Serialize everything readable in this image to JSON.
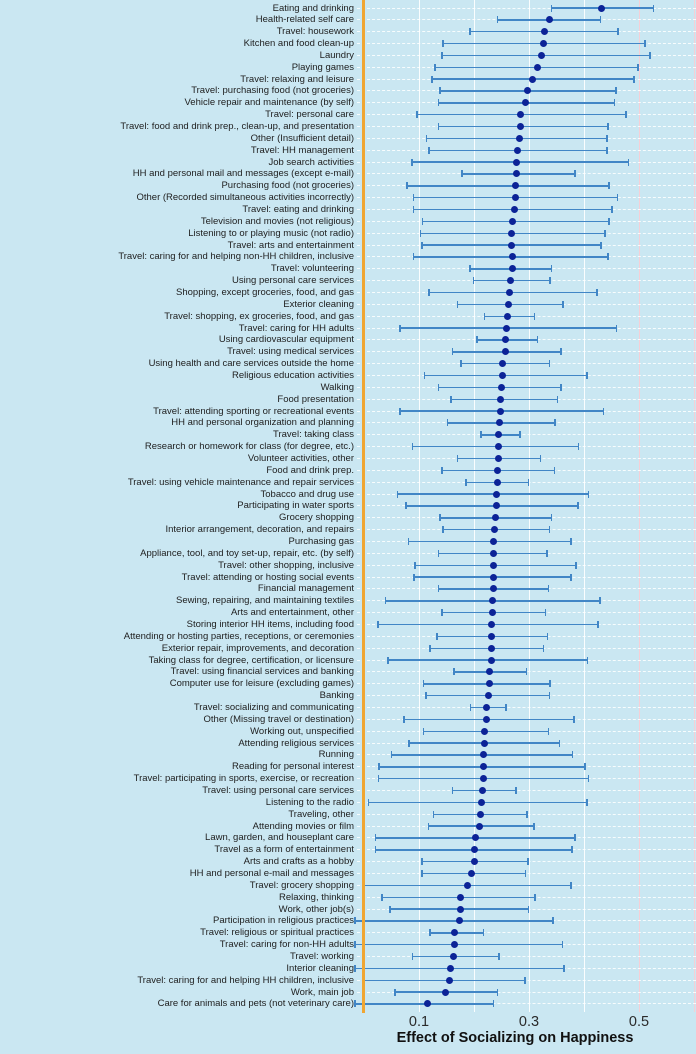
{
  "colors": {
    "background": "#cae7f2",
    "bar": "#4186c6",
    "dot": "#0c2397",
    "reference_line": "#f0a632",
    "gridline_white": "rgba(255,255,255,0.9)",
    "gridline_pink": "#f6cfd6"
  },
  "chart_data": {
    "type": "scatter",
    "variant": "forest-plot-dot-with-error-bars",
    "title": "",
    "xlabel": "Effect of Socializing on Happiness",
    "ylabel": "",
    "x_ticks": [
      0.1,
      0.3,
      0.5
    ],
    "x_tick_labels": [
      "0.1",
      "0.3",
      "0.5"
    ],
    "xlim": [
      -0.03,
      0.61
    ],
    "reference_line_x": 0,
    "grid_values": [
      0.1,
      0.2,
      0.3,
      0.4,
      0.5,
      0.6
    ],
    "legend_position": "none",
    "rows": [
      {
        "label": "Eating and drinking",
        "value": 0.432,
        "lo": 0.341,
        "hi": 0.526
      },
      {
        "label": "Health-related self care",
        "value": 0.337,
        "lo": 0.243,
        "hi": 0.43
      },
      {
        "label": "Travel: housework",
        "value": 0.328,
        "lo": 0.193,
        "hi": 0.462
      },
      {
        "label": "Kitchen and food clean-up",
        "value": 0.326,
        "lo": 0.144,
        "hi": 0.511
      },
      {
        "label": "Laundry",
        "value": 0.322,
        "lo": 0.142,
        "hi": 0.52
      },
      {
        "label": "Playing games",
        "value": 0.316,
        "lo": 0.129,
        "hi": 0.498
      },
      {
        "label": "Travel: relaxing and leisure",
        "value": 0.307,
        "lo": 0.124,
        "hi": 0.491
      },
      {
        "label": "Travel: purchasing food (not groceries)",
        "value": 0.298,
        "lo": 0.138,
        "hi": 0.458
      },
      {
        "label": "Vehicle repair and maintenance (by self)",
        "value": 0.293,
        "lo": 0.135,
        "hi": 0.455
      },
      {
        "label": "Travel: personal care",
        "value": 0.285,
        "lo": 0.096,
        "hi": 0.476
      },
      {
        "label": "Travel: food and drink prep., clean-up, and presentation",
        "value": 0.285,
        "lo": 0.135,
        "hi": 0.444
      },
      {
        "label": "Other (Insufficient detail)",
        "value": 0.282,
        "lo": 0.114,
        "hi": 0.442
      },
      {
        "label": "Travel: HH management",
        "value": 0.279,
        "lo": 0.118,
        "hi": 0.442
      },
      {
        "label": "Job search activities",
        "value": 0.278,
        "lo": 0.087,
        "hi": 0.481
      },
      {
        "label": "HH and personal mail and messages (except e-mail)",
        "value": 0.278,
        "lo": 0.178,
        "hi": 0.384
      },
      {
        "label": "Purchasing food (not groceries)",
        "value": 0.276,
        "lo": 0.078,
        "hi": 0.445
      },
      {
        "label": "Other (Recorded simultaneous activities incorrectly)",
        "value": 0.276,
        "lo": 0.09,
        "hi": 0.461
      },
      {
        "label": "Travel: eating and drinking",
        "value": 0.273,
        "lo": 0.09,
        "hi": 0.451
      },
      {
        "label": "Television and movies (not religious)",
        "value": 0.27,
        "lo": 0.106,
        "hi": 0.445
      },
      {
        "label": "Listening to or playing music (not radio)",
        "value": 0.268,
        "lo": 0.103,
        "hi": 0.438
      },
      {
        "label": "Travel: arts and entertainment",
        "value": 0.268,
        "lo": 0.105,
        "hi": 0.431
      },
      {
        "label": "Travel: caring for and helping non-HH children, inclusive",
        "value": 0.27,
        "lo": 0.09,
        "hi": 0.444
      },
      {
        "label": "Travel: volunteering",
        "value": 0.27,
        "lo": 0.193,
        "hi": 0.341
      },
      {
        "label": "Using personal care services",
        "value": 0.267,
        "lo": 0.199,
        "hi": 0.338
      },
      {
        "label": "Shopping, except groceries, food, and gas",
        "value": 0.265,
        "lo": 0.118,
        "hi": 0.424
      },
      {
        "label": "Exterior cleaning",
        "value": 0.262,
        "lo": 0.17,
        "hi": 0.362
      },
      {
        "label": "Travel: shopping, ex groceries, food, and gas",
        "value": 0.261,
        "lo": 0.219,
        "hi": 0.31
      },
      {
        "label": "Travel: caring for HH adults",
        "value": 0.259,
        "lo": 0.065,
        "hi": 0.459
      },
      {
        "label": "Using cardiovascular equipment",
        "value": 0.258,
        "lo": 0.205,
        "hi": 0.315
      },
      {
        "label": "Travel: using medical services",
        "value": 0.258,
        "lo": 0.161,
        "hi": 0.358
      },
      {
        "label": "Using health and care services outside the home",
        "value": 0.252,
        "lo": 0.176,
        "hi": 0.337
      },
      {
        "label": "Religious education activities",
        "value": 0.252,
        "lo": 0.11,
        "hi": 0.405
      },
      {
        "label": "Walking",
        "value": 0.25,
        "lo": 0.135,
        "hi": 0.358
      },
      {
        "label": "Food presentation",
        "value": 0.249,
        "lo": 0.158,
        "hi": 0.352
      },
      {
        "label": "Travel: attending sporting or recreational events",
        "value": 0.249,
        "lo": 0.065,
        "hi": 0.435
      },
      {
        "label": "HH and personal organization and planning",
        "value": 0.246,
        "lo": 0.152,
        "hi": 0.347
      },
      {
        "label": "Travel: taking class",
        "value": 0.244,
        "lo": 0.213,
        "hi": 0.284
      },
      {
        "label": "Research or homework for class (for degree, etc.)",
        "value": 0.244,
        "lo": 0.088,
        "hi": 0.39
      },
      {
        "label": "Volunteer activities, other",
        "value": 0.244,
        "lo": 0.17,
        "hi": 0.321
      },
      {
        "label": "Food and drink prep.",
        "value": 0.243,
        "lo": 0.142,
        "hi": 0.346
      },
      {
        "label": "Travel: using vehicle maintenance and repair services",
        "value": 0.243,
        "lo": 0.185,
        "hi": 0.299
      },
      {
        "label": "Tobacco and drug use",
        "value": 0.241,
        "lo": 0.061,
        "hi": 0.408
      },
      {
        "label": "Participating in water sports",
        "value": 0.241,
        "lo": 0.076,
        "hi": 0.389
      },
      {
        "label": "Grocery shopping",
        "value": 0.239,
        "lo": 0.138,
        "hi": 0.341
      },
      {
        "label": "Interior arrangement, decoration, and repairs",
        "value": 0.237,
        "lo": 0.144,
        "hi": 0.337
      },
      {
        "label": "Purchasing gas",
        "value": 0.236,
        "lo": 0.081,
        "hi": 0.376
      },
      {
        "label": "Appliance, tool, and toy set-up, repair, etc. (by self)",
        "value": 0.235,
        "lo": 0.135,
        "hi": 0.333
      },
      {
        "label": "Travel: other shopping, inclusive",
        "value": 0.236,
        "lo": 0.093,
        "hi": 0.385
      },
      {
        "label": "Travel: attending or hosting social events",
        "value": 0.235,
        "lo": 0.091,
        "hi": 0.376
      },
      {
        "label": "Financial management",
        "value": 0.235,
        "lo": 0.135,
        "hi": 0.335
      },
      {
        "label": "Sewing, repairing, and maintaining textiles",
        "value": 0.233,
        "lo": 0.039,
        "hi": 0.429
      },
      {
        "label": "Arts and entertainment, other",
        "value": 0.233,
        "lo": 0.142,
        "hi": 0.33
      },
      {
        "label": "Storing interior HH items, including food",
        "value": 0.232,
        "lo": 0.025,
        "hi": 0.425
      },
      {
        "label": "Attending or hosting parties, receptions, or ceremonies",
        "value": 0.231,
        "lo": 0.133,
        "hi": 0.334
      },
      {
        "label": "Exterior repair, improvements, and decoration",
        "value": 0.231,
        "lo": 0.12,
        "hi": 0.326
      },
      {
        "label": "Taking class for degree, certification, or licensure",
        "value": 0.231,
        "lo": 0.044,
        "hi": 0.406
      },
      {
        "label": "Travel: using financial services and banking",
        "value": 0.229,
        "lo": 0.164,
        "hi": 0.295
      },
      {
        "label": "Computer use for leisure (excluding games)",
        "value": 0.228,
        "lo": 0.108,
        "hi": 0.338
      },
      {
        "label": "Banking",
        "value": 0.227,
        "lo": 0.113,
        "hi": 0.337
      },
      {
        "label": "Travel: socializing and communicating",
        "value": 0.223,
        "lo": 0.194,
        "hi": 0.258
      },
      {
        "label": "Other (Missing travel or destination)",
        "value": 0.223,
        "lo": 0.073,
        "hi": 0.382
      },
      {
        "label": "Working out, unspecified",
        "value": 0.219,
        "lo": 0.108,
        "hi": 0.335
      },
      {
        "label": "Attending religious services",
        "value": 0.219,
        "lo": 0.082,
        "hi": 0.355
      },
      {
        "label": "Running",
        "value": 0.217,
        "lo": 0.05,
        "hi": 0.379
      },
      {
        "label": "Reading for personal interest",
        "value": 0.217,
        "lo": 0.027,
        "hi": 0.402
      },
      {
        "label": "Travel: participating in sports, exercise, or recreation",
        "value": 0.218,
        "lo": 0.026,
        "hi": 0.408
      },
      {
        "label": "Travel: using personal care services",
        "value": 0.215,
        "lo": 0.161,
        "hi": 0.276
      },
      {
        "label": "Listening to the radio",
        "value": 0.213,
        "lo": 0.008,
        "hi": 0.405
      },
      {
        "label": "Traveling, other",
        "value": 0.211,
        "lo": 0.126,
        "hi": 0.296
      },
      {
        "label": "Attending movies or film",
        "value": 0.21,
        "lo": 0.117,
        "hi": 0.309
      },
      {
        "label": "Lawn, garden, and houseplant care",
        "value": 0.203,
        "lo": 0.021,
        "hi": 0.384
      },
      {
        "label": "Travel as a form of entertainment",
        "value": 0.2,
        "lo": 0.021,
        "hi": 0.378
      },
      {
        "label": "Arts and crafts as a hobby",
        "value": 0.2,
        "lo": 0.105,
        "hi": 0.298
      },
      {
        "label": "HH and personal e-mail and messages",
        "value": 0.195,
        "lo": 0.105,
        "hi": 0.294
      },
      {
        "label": "Travel: grocery shopping",
        "value": 0.189,
        "lo": -0.001,
        "hi": 0.376
      },
      {
        "label": "Relaxing, thinking",
        "value": 0.176,
        "lo": 0.033,
        "hi": 0.311
      },
      {
        "label": "Work, other job(s)",
        "value": 0.176,
        "lo": 0.047,
        "hi": 0.299
      },
      {
        "label": "Participation in religious practices",
        "value": 0.173,
        "lo": -0.016,
        "hi": 0.344
      },
      {
        "label": "Travel: religious or spiritual practices",
        "value": 0.165,
        "lo": 0.12,
        "hi": 0.217
      },
      {
        "label": "Travel: caring for non-HH adults",
        "value": 0.164,
        "lo": -0.016,
        "hi": 0.361
      },
      {
        "label": "Travel: working",
        "value": 0.162,
        "lo": 0.088,
        "hi": 0.245
      },
      {
        "label": "Interior cleaning",
        "value": 0.158,
        "lo": -0.016,
        "hi": 0.364
      },
      {
        "label": "Travel: caring for and helping HH children, inclusive",
        "value": 0.155,
        "lo": -0.001,
        "hi": 0.293
      },
      {
        "label": "Work, main job",
        "value": 0.149,
        "lo": 0.056,
        "hi": 0.243
      },
      {
        "label": "Care for animals and pets (not veterinary care)",
        "value": 0.116,
        "lo": -0.016,
        "hi": 0.235
      }
    ]
  }
}
